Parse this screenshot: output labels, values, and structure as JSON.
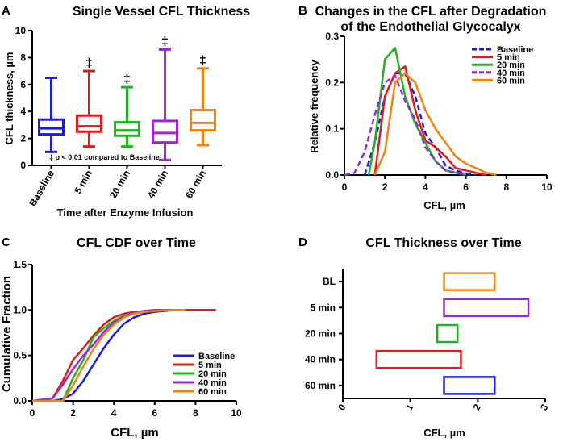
{
  "chart_data": [
    {
      "id": "A",
      "type": "box",
      "panel_label": "A",
      "title": "Single Vessel CFL Thickness",
      "xlabel": "Time after Enzyme Infusion",
      "ylabel": "CFL thickness, µm",
      "ylim": [
        0,
        10
      ],
      "yticks": [
        0,
        2,
        4,
        6,
        8,
        10
      ],
      "categories": [
        "Baseline",
        "5 min",
        "20 min",
        "40 min",
        "60 min"
      ],
      "colors": [
        "#1b1bdf",
        "#e21a1a",
        "#1fb51f",
        "#9b27d9",
        "#f2820d"
      ],
      "boxes": [
        {
          "min": 1.0,
          "q1": 2.3,
          "median": 2.75,
          "q3": 3.4,
          "max": 6.5,
          "mark": ""
        },
        {
          "min": 1.4,
          "q1": 2.5,
          "median": 2.9,
          "q3": 3.7,
          "max": 7.0,
          "mark": "‡"
        },
        {
          "min": 1.4,
          "q1": 2.2,
          "median": 2.6,
          "q3": 3.2,
          "max": 5.8,
          "mark": "‡"
        },
        {
          "min": 0.4,
          "q1": 1.7,
          "median": 2.4,
          "q3": 3.3,
          "max": 8.6,
          "mark": "‡"
        },
        {
          "min": 1.5,
          "q1": 2.6,
          "median": 3.15,
          "q3": 4.1,
          "max": 7.2,
          "mark": "‡"
        }
      ],
      "annotation": "‡ p < 0.01 compared to Baseline"
    },
    {
      "id": "B",
      "type": "line",
      "panel_label": "B",
      "title": "Changes in the CFL after Degradation of the Endothelial Glycocalyx",
      "title_lines": [
        "Changes in the CFL after Degradation",
        "of the Endothelial Glycocalyx"
      ],
      "xlabel": "CFL, µm",
      "ylabel": "Relative frequency",
      "xlim": [
        0,
        10
      ],
      "ylim": [
        0,
        0.3
      ],
      "xticks": [
        0,
        2,
        4,
        6,
        8,
        10
      ],
      "yticks": [
        0.0,
        0.1,
        0.2,
        0.3
      ],
      "ytick_labels": [
        "0.0",
        "0.1",
        "0.2",
        "0.3"
      ],
      "series": [
        {
          "name": "Baseline",
          "color": "#1b1bdf",
          "dashed": true,
          "x": [
            1.0,
            1.5,
            2.0,
            2.5,
            3.0,
            3.5,
            4.0,
            4.5,
            5.0,
            5.5,
            6.0,
            6.5
          ],
          "y": [
            0.0,
            0.07,
            0.17,
            0.22,
            0.22,
            0.17,
            0.09,
            0.06,
            0.02,
            0.01,
            0.003,
            0.0
          ]
        },
        {
          "name": "5 min",
          "color": "#e21a1a",
          "dashed": false,
          "x": [
            1.5,
            2.0,
            2.5,
            3.0,
            3.5,
            4.0,
            4.5,
            5.0,
            5.5,
            6.0,
            6.5,
            7.0
          ],
          "y": [
            0.0,
            0.17,
            0.22,
            0.235,
            0.14,
            0.075,
            0.06,
            0.04,
            0.015,
            0.01,
            0.005,
            0.0
          ]
        },
        {
          "name": "20 min",
          "color": "#1fb51f",
          "dashed": false,
          "x": [
            1.2,
            1.5,
            2.0,
            2.5,
            3.0,
            3.5,
            4.0,
            4.5,
            5.0,
            5.5,
            6.0
          ],
          "y": [
            0.0,
            0.07,
            0.25,
            0.275,
            0.17,
            0.11,
            0.07,
            0.03,
            0.01,
            0.005,
            0.0
          ]
        },
        {
          "name": "40 min",
          "color": "#9b27d9",
          "dashed": true,
          "x": [
            0.0,
            0.5,
            1.0,
            1.5,
            2.0,
            2.5,
            3.0,
            3.5,
            4.0,
            4.5,
            5.0,
            6.0
          ],
          "y": [
            0.0,
            0.005,
            0.05,
            0.13,
            0.2,
            0.215,
            0.16,
            0.12,
            0.06,
            0.03,
            0.01,
            0.0
          ]
        },
        {
          "name": "60 min",
          "color": "#f2820d",
          "dashed": false,
          "x": [
            1.5,
            2.0,
            2.5,
            3.0,
            3.5,
            4.0,
            4.5,
            5.0,
            5.5,
            6.0,
            6.5,
            7.0,
            7.5
          ],
          "y": [
            0.0,
            0.05,
            0.2,
            0.22,
            0.2,
            0.14,
            0.1,
            0.07,
            0.04,
            0.025,
            0.015,
            0.005,
            0.0
          ]
        }
      ]
    },
    {
      "id": "C",
      "type": "line",
      "panel_label": "C",
      "title": "CFL CDF over Time",
      "xlabel": "CFL, µm",
      "ylabel": "Cumulative Fraction",
      "xlim": [
        0,
        10
      ],
      "ylim": [
        0,
        1.5
      ],
      "xticks": [
        0,
        2,
        4,
        6,
        8,
        10
      ],
      "yticks": [
        0.0,
        0.5,
        1.0,
        1.5
      ],
      "ytick_labels": [
        "0.0",
        "0.5",
        "1.0",
        "1.5"
      ],
      "series": [
        {
          "name": "Baseline",
          "color": "#1b1bdf",
          "x": [
            0,
            1.0,
            1.5,
            2.0,
            2.5,
            3.0,
            3.5,
            4.0,
            4.5,
            5.0,
            5.5,
            6.0,
            6.5,
            7.0,
            7.5
          ],
          "y": [
            0,
            0,
            0.02,
            0.08,
            0.22,
            0.4,
            0.58,
            0.73,
            0.85,
            0.92,
            0.96,
            0.98,
            0.99,
            1.0,
            1.0
          ]
        },
        {
          "name": "5 min",
          "color": "#e21a1a",
          "x": [
            0,
            0.5,
            1.0,
            1.5,
            2.0,
            2.5,
            3.0,
            3.5,
            4.0,
            4.5,
            5.0,
            6.0,
            7.0,
            8.0,
            9.0
          ],
          "y": [
            0,
            0.005,
            0.03,
            0.22,
            0.45,
            0.58,
            0.72,
            0.84,
            0.92,
            0.96,
            0.98,
            0.995,
            1.0,
            1.0,
            1.0
          ]
        },
        {
          "name": "20 min",
          "color": "#1fb51f",
          "x": [
            0,
            1.5,
            2.0,
            2.5,
            3.0,
            3.5,
            4.0,
            4.5,
            5.0,
            5.5,
            6.0,
            7.0
          ],
          "y": [
            0,
            0.0,
            0.25,
            0.45,
            0.7,
            0.8,
            0.88,
            0.94,
            0.97,
            0.99,
            1.0,
            1.0
          ]
        },
        {
          "name": "40 min",
          "color": "#9b27d9",
          "x": [
            0,
            1.0,
            1.5,
            2.0,
            2.5,
            3.0,
            3.5,
            4.0,
            4.5,
            5.0,
            5.5,
            6.0,
            7.0
          ],
          "y": [
            0,
            0.03,
            0.18,
            0.35,
            0.5,
            0.62,
            0.76,
            0.86,
            0.93,
            0.97,
            0.99,
            1.0,
            1.0
          ]
        },
        {
          "name": "60 min",
          "color": "#f2820d",
          "x": [
            0,
            1.5,
            2.0,
            2.5,
            3.0,
            3.5,
            4.0,
            4.5,
            5.0,
            5.5,
            6.0,
            7.0,
            7.5
          ],
          "y": [
            0,
            0.0,
            0.17,
            0.38,
            0.57,
            0.73,
            0.84,
            0.92,
            0.96,
            0.98,
            0.99,
            1.0,
            1.0
          ]
        }
      ]
    },
    {
      "id": "D",
      "type": "floating-bar",
      "panel_label": "D",
      "title": "CFL Thickness over Time",
      "xlabel": "CFL, µm",
      "xlim": [
        0,
        3
      ],
      "xticks": [
        0,
        1,
        2,
        3
      ],
      "categories": [
        "BL",
        "5 min",
        "20 min",
        "40 min",
        "60 min"
      ],
      "bars": [
        {
          "category": "BL",
          "start": 1.5,
          "end": 2.25,
          "color": "#f2820d"
        },
        {
          "category": "5 min",
          "start": 1.5,
          "end": 2.75,
          "color": "#9b27d9"
        },
        {
          "category": "20 min",
          "start": 1.4,
          "end": 1.7,
          "color": "#1fb51f"
        },
        {
          "category": "40 min",
          "start": 0.5,
          "end": 1.75,
          "color": "#e21a1a"
        },
        {
          "category": "60 min",
          "start": 1.5,
          "end": 2.25,
          "color": "#1b1bdf"
        }
      ]
    }
  ]
}
